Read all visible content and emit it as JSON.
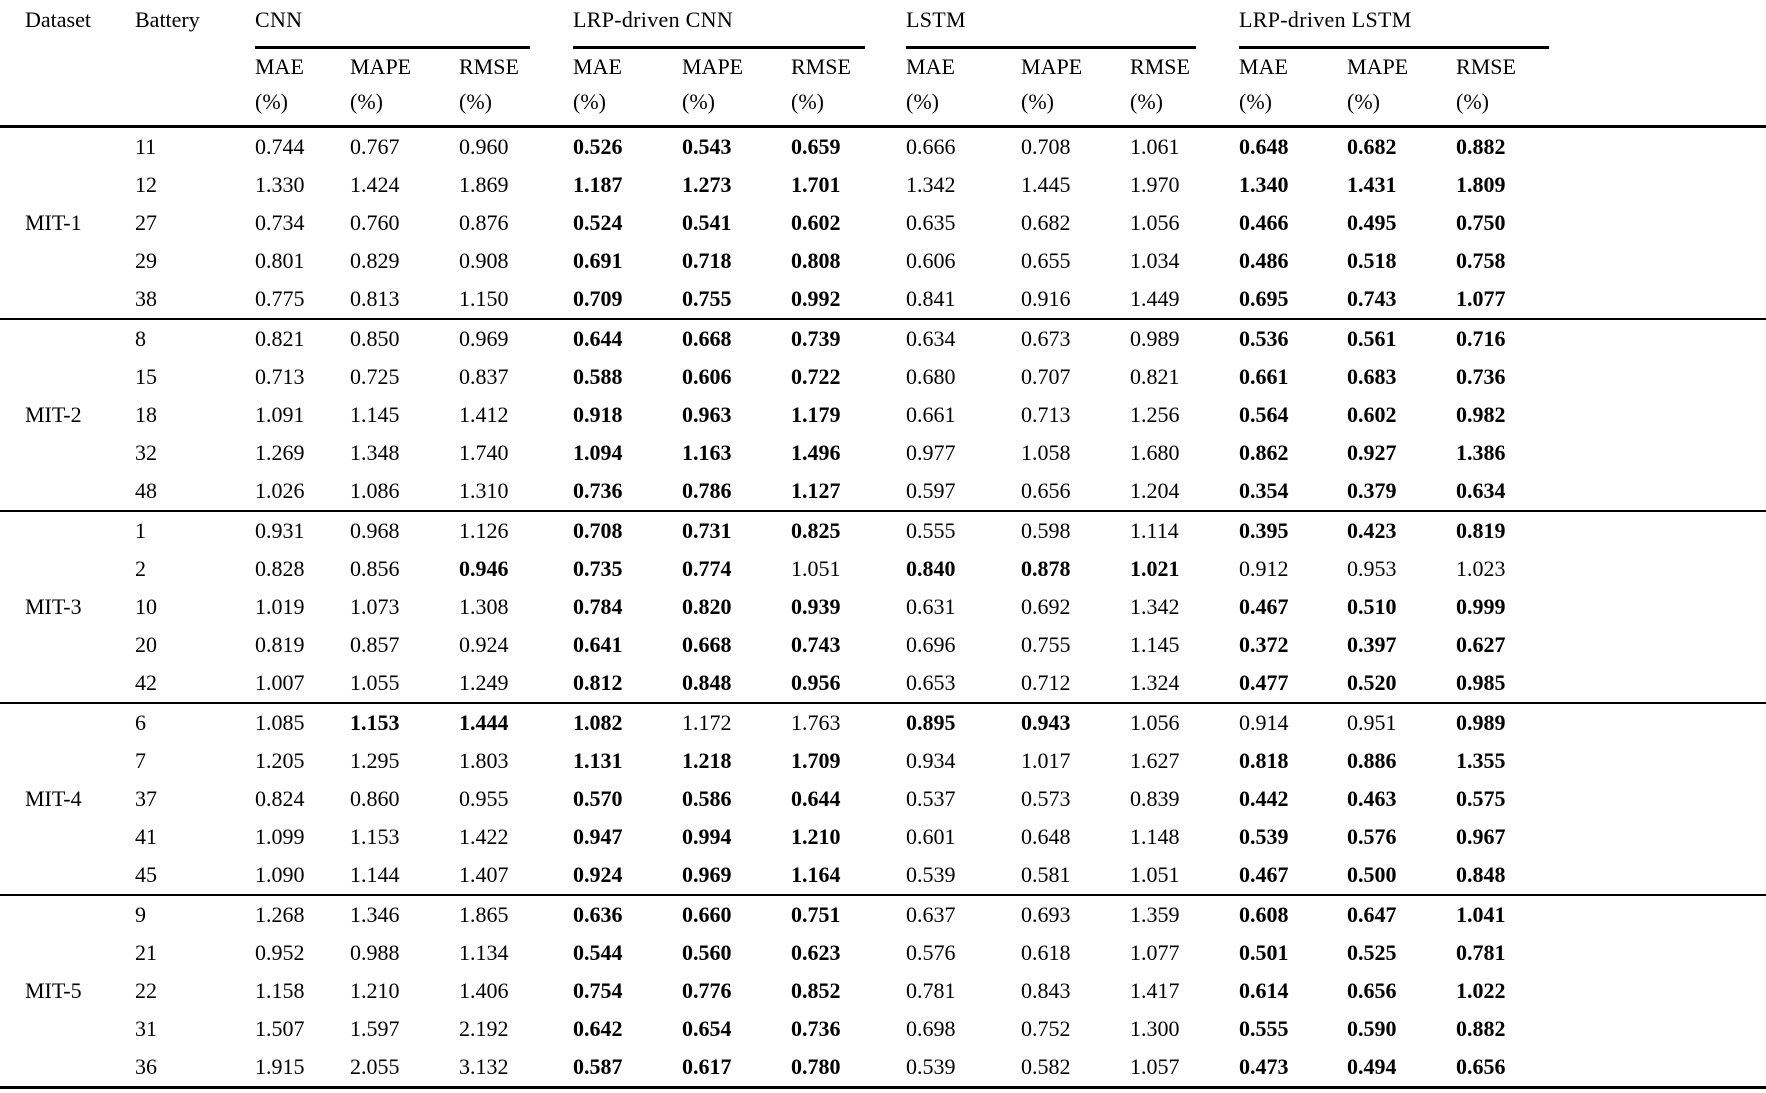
{
  "table": {
    "header": {
      "dataset_label": "Dataset",
      "battery_label": "Battery",
      "groups": [
        "CNN",
        "LRP-driven CNN",
        "LSTM",
        "LRP-driven LSTM"
      ],
      "metrics": [
        "MAE",
        "MAPE",
        "RMSE"
      ],
      "unit": "(%)"
    },
    "blocks": [
      {
        "dataset": "MIT-1",
        "rows": [
          {
            "battery": "11",
            "values": [
              "0.744",
              "0.767",
              "0.960",
              "0.526",
              "0.543",
              "0.659",
              "0.666",
              "0.708",
              "1.061",
              "0.648",
              "0.682",
              "0.882"
            ],
            "bold": [
              0,
              0,
              0,
              1,
              1,
              1,
              0,
              0,
              0,
              1,
              1,
              1
            ]
          },
          {
            "battery": "12",
            "values": [
              "1.330",
              "1.424",
              "1.869",
              "1.187",
              "1.273",
              "1.701",
              "1.342",
              "1.445",
              "1.970",
              "1.340",
              "1.431",
              "1.809"
            ],
            "bold": [
              0,
              0,
              0,
              1,
              1,
              1,
              0,
              0,
              0,
              1,
              1,
              1
            ]
          },
          {
            "battery": "27",
            "values": [
              "0.734",
              "0.760",
              "0.876",
              "0.524",
              "0.541",
              "0.602",
              "0.635",
              "0.682",
              "1.056",
              "0.466",
              "0.495",
              "0.750"
            ],
            "bold": [
              0,
              0,
              0,
              1,
              1,
              1,
              0,
              0,
              0,
              1,
              1,
              1
            ]
          },
          {
            "battery": "29",
            "values": [
              "0.801",
              "0.829",
              "0.908",
              "0.691",
              "0.718",
              "0.808",
              "0.606",
              "0.655",
              "1.034",
              "0.486",
              "0.518",
              "0.758"
            ],
            "bold": [
              0,
              0,
              0,
              1,
              1,
              1,
              0,
              0,
              0,
              1,
              1,
              1
            ]
          },
          {
            "battery": "38",
            "values": [
              "0.775",
              "0.813",
              "1.150",
              "0.709",
              "0.755",
              "0.992",
              "0.841",
              "0.916",
              "1.449",
              "0.695",
              "0.743",
              "1.077"
            ],
            "bold": [
              0,
              0,
              0,
              1,
              1,
              1,
              0,
              0,
              0,
              1,
              1,
              1
            ]
          }
        ]
      },
      {
        "dataset": "MIT-2",
        "rows": [
          {
            "battery": "8",
            "values": [
              "0.821",
              "0.850",
              "0.969",
              "0.644",
              "0.668",
              "0.739",
              "0.634",
              "0.673",
              "0.989",
              "0.536",
              "0.561",
              "0.716"
            ],
            "bold": [
              0,
              0,
              0,
              1,
              1,
              1,
              0,
              0,
              0,
              1,
              1,
              1
            ]
          },
          {
            "battery": "15",
            "values": [
              "0.713",
              "0.725",
              "0.837",
              "0.588",
              "0.606",
              "0.722",
              "0.680",
              "0.707",
              "0.821",
              "0.661",
              "0.683",
              "0.736"
            ],
            "bold": [
              0,
              0,
              0,
              1,
              1,
              1,
              0,
              0,
              0,
              1,
              1,
              1
            ]
          },
          {
            "battery": "18",
            "values": [
              "1.091",
              "1.145",
              "1.412",
              "0.918",
              "0.963",
              "1.179",
              "0.661",
              "0.713",
              "1.256",
              "0.564",
              "0.602",
              "0.982"
            ],
            "bold": [
              0,
              0,
              0,
              1,
              1,
              1,
              0,
              0,
              0,
              1,
              1,
              1
            ]
          },
          {
            "battery": "32",
            "values": [
              "1.269",
              "1.348",
              "1.740",
              "1.094",
              "1.163",
              "1.496",
              "0.977",
              "1.058",
              "1.680",
              "0.862",
              "0.927",
              "1.386"
            ],
            "bold": [
              0,
              0,
              0,
              1,
              1,
              1,
              0,
              0,
              0,
              1,
              1,
              1
            ]
          },
          {
            "battery": "48",
            "values": [
              "1.026",
              "1.086",
              "1.310",
              "0.736",
              "0.786",
              "1.127",
              "0.597",
              "0.656",
              "1.204",
              "0.354",
              "0.379",
              "0.634"
            ],
            "bold": [
              0,
              0,
              0,
              1,
              1,
              1,
              0,
              0,
              0,
              1,
              1,
              1
            ]
          }
        ]
      },
      {
        "dataset": "MIT-3",
        "rows": [
          {
            "battery": "1",
            "values": [
              "0.931",
              "0.968",
              "1.126",
              "0.708",
              "0.731",
              "0.825",
              "0.555",
              "0.598",
              "1.114",
              "0.395",
              "0.423",
              "0.819"
            ],
            "bold": [
              0,
              0,
              0,
              1,
              1,
              1,
              0,
              0,
              0,
              1,
              1,
              1
            ]
          },
          {
            "battery": "2",
            "values": [
              "0.828",
              "0.856",
              "0.946",
              "0.735",
              "0.774",
              "1.051",
              "0.840",
              "0.878",
              "1.021",
              "0.912",
              "0.953",
              "1.023"
            ],
            "bold": [
              0,
              0,
              1,
              1,
              1,
              0,
              1,
              1,
              1,
              0,
              0,
              0
            ]
          },
          {
            "battery": "10",
            "values": [
              "1.019",
              "1.073",
              "1.308",
              "0.784",
              "0.820",
              "0.939",
              "0.631",
              "0.692",
              "1.342",
              "0.467",
              "0.510",
              "0.999"
            ],
            "bold": [
              0,
              0,
              0,
              1,
              1,
              1,
              0,
              0,
              0,
              1,
              1,
              1
            ]
          },
          {
            "battery": "20",
            "values": [
              "0.819",
              "0.857",
              "0.924",
              "0.641",
              "0.668",
              "0.743",
              "0.696",
              "0.755",
              "1.145",
              "0.372",
              "0.397",
              "0.627"
            ],
            "bold": [
              0,
              0,
              0,
              1,
              1,
              1,
              0,
              0,
              0,
              1,
              1,
              1
            ]
          },
          {
            "battery": "42",
            "values": [
              "1.007",
              "1.055",
              "1.249",
              "0.812",
              "0.848",
              "0.956",
              "0.653",
              "0.712",
              "1.324",
              "0.477",
              "0.520",
              "0.985"
            ],
            "bold": [
              0,
              0,
              0,
              1,
              1,
              1,
              0,
              0,
              0,
              1,
              1,
              1
            ]
          }
        ]
      },
      {
        "dataset": "MIT-4",
        "rows": [
          {
            "battery": "6",
            "values": [
              "1.085",
              "1.153",
              "1.444",
              "1.082",
              "1.172",
              "1.763",
              "0.895",
              "0.943",
              "1.056",
              "0.914",
              "0.951",
              "0.989"
            ],
            "bold": [
              0,
              1,
              1,
              1,
              0,
              0,
              1,
              1,
              0,
              0,
              0,
              1
            ]
          },
          {
            "battery": "7",
            "values": [
              "1.205",
              "1.295",
              "1.803",
              "1.131",
              "1.218",
              "1.709",
              "0.934",
              "1.017",
              "1.627",
              "0.818",
              "0.886",
              "1.355"
            ],
            "bold": [
              0,
              0,
              0,
              1,
              1,
              1,
              0,
              0,
              0,
              1,
              1,
              1
            ]
          },
          {
            "battery": "37",
            "values": [
              "0.824",
              "0.860",
              "0.955",
              "0.570",
              "0.586",
              "0.644",
              "0.537",
              "0.573",
              "0.839",
              "0.442",
              "0.463",
              "0.575"
            ],
            "bold": [
              0,
              0,
              0,
              1,
              1,
              1,
              0,
              0,
              0,
              1,
              1,
              1
            ]
          },
          {
            "battery": "41",
            "values": [
              "1.099",
              "1.153",
              "1.422",
              "0.947",
              "0.994",
              "1.210",
              "0.601",
              "0.648",
              "1.148",
              "0.539",
              "0.576",
              "0.967"
            ],
            "bold": [
              0,
              0,
              0,
              1,
              1,
              1,
              0,
              0,
              0,
              1,
              1,
              1
            ]
          },
          {
            "battery": "45",
            "values": [
              "1.090",
              "1.144",
              "1.407",
              "0.924",
              "0.969",
              "1.164",
              "0.539",
              "0.581",
              "1.051",
              "0.467",
              "0.500",
              "0.848"
            ],
            "bold": [
              0,
              0,
              0,
              1,
              1,
              1,
              0,
              0,
              0,
              1,
              1,
              1
            ]
          }
        ]
      },
      {
        "dataset": "MIT-5",
        "rows": [
          {
            "battery": "9",
            "values": [
              "1.268",
              "1.346",
              "1.865",
              "0.636",
              "0.660",
              "0.751",
              "0.637",
              "0.693",
              "1.359",
              "0.608",
              "0.647",
              "1.041"
            ],
            "bold": [
              0,
              0,
              0,
              1,
              1,
              1,
              0,
              0,
              0,
              1,
              1,
              1
            ]
          },
          {
            "battery": "21",
            "values": [
              "0.952",
              "0.988",
              "1.134",
              "0.544",
              "0.560",
              "0.623",
              "0.576",
              "0.618",
              "1.077",
              "0.501",
              "0.525",
              "0.781"
            ],
            "bold": [
              0,
              0,
              0,
              1,
              1,
              1,
              0,
              0,
              0,
              1,
              1,
              1
            ]
          },
          {
            "battery": "22",
            "values": [
              "1.158",
              "1.210",
              "1.406",
              "0.754",
              "0.776",
              "0.852",
              "0.781",
              "0.843",
              "1.417",
              "0.614",
              "0.656",
              "1.022"
            ],
            "bold": [
              0,
              0,
              0,
              1,
              1,
              1,
              0,
              0,
              0,
              1,
              1,
              1
            ]
          },
          {
            "battery": "31",
            "values": [
              "1.507",
              "1.597",
              "2.192",
              "0.642",
              "0.654",
              "0.736",
              "0.698",
              "0.752",
              "1.300",
              "0.555",
              "0.590",
              "0.882"
            ],
            "bold": [
              0,
              0,
              0,
              1,
              1,
              1,
              0,
              0,
              0,
              1,
              1,
              1
            ]
          },
          {
            "battery": "36",
            "values": [
              "1.915",
              "2.055",
              "3.132",
              "0.587",
              "0.617",
              "0.780",
              "0.539",
              "0.582",
              "1.057",
              "0.473",
              "0.494",
              "0.656"
            ],
            "bold": [
              0,
              0,
              0,
              1,
              1,
              1,
              0,
              0,
              0,
              1,
              1,
              1
            ]
          }
        ]
      }
    ]
  }
}
